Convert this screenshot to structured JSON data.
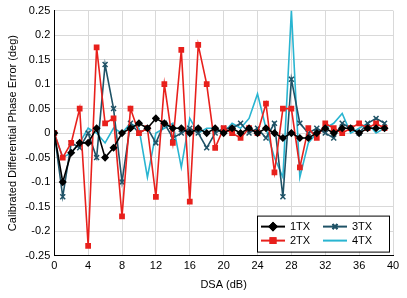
{
  "chart_data": {
    "type": "line",
    "x_label": "DSA (dB)",
    "y_label": "Calibrated Differential Phase Error (deg)",
    "x": [
      0,
      1,
      2,
      3,
      4,
      5,
      6,
      7,
      8,
      9,
      10,
      11,
      12,
      13,
      14,
      15,
      16,
      17,
      18,
      19,
      20,
      21,
      22,
      23,
      24,
      25,
      26,
      27,
      28,
      29,
      30,
      31,
      32,
      33,
      34,
      35,
      36,
      37,
      38,
      39
    ],
    "series": [
      {
        "name": "1TX",
        "color": "#000000",
        "marker": "diamond",
        "values": [
          0,
          -0.1,
          -0.04,
          -0.02,
          -0.02,
          0.01,
          -0.05,
          -0.03,
          0,
          0.01,
          0.02,
          0.01,
          0.03,
          0.02,
          0.01,
          0.01,
          0,
          0.01,
          0,
          0.01,
          0,
          0.01,
          0,
          0.01,
          0,
          0.01,
          0,
          -0.01,
          0,
          -0.01,
          -0.01,
          0,
          0.01,
          0,
          0.01,
          0.01,
          0,
          0.01,
          0.01,
          0.01
        ]
      },
      {
        "name": "2TX",
        "color": "#e8201c",
        "marker": "square",
        "values": [
          0,
          -0.05,
          -0.02,
          0.05,
          -0.23,
          0.175,
          0.02,
          0.03,
          -0.17,
          0.05,
          0,
          0.01,
          -0.13,
          0.1,
          -0.02,
          0.17,
          -0.14,
          0.18,
          0.1,
          -0.03,
          0.01,
          0,
          -0.01,
          0.01,
          0,
          0.06,
          -0.08,
          0.05,
          0.05,
          -0.07,
          0.01,
          -0.01,
          0.02,
          0.01,
          0,
          0.01,
          0.02,
          0.01,
          0.02,
          0.01
        ]
      },
      {
        "name": "3TX",
        "color": "#1f5266",
        "marker": "cross",
        "values": [
          0,
          -0.13,
          -0.02,
          -0.03,
          0,
          -0.05,
          0.14,
          0.05,
          -0.1,
          0.02,
          0,
          0.01,
          -0.02,
          0.02,
          -0.01,
          0,
          0.01,
          0,
          -0.03,
          0,
          0.01,
          0.01,
          0.02,
          0,
          0.01,
          -0.01,
          0.02,
          -0.13,
          0.11,
          0.02,
          0,
          0.01,
          0,
          -0.01,
          0.02,
          0.01,
          0,
          0.02,
          0.03,
          0.02
        ]
      },
      {
        "name": "4TX",
        "color": "#29b5d1",
        "marker": "none",
        "values": [
          0,
          -0.05,
          -0.04,
          -0.02,
          0.01,
          0,
          -0.02,
          0.01,
          0,
          0.02,
          0.01,
          -0.09,
          0,
          0.01,
          0.02,
          -0.07,
          0.03,
          0,
          0.01,
          0.01,
          0,
          0.02,
          0.01,
          0.03,
          0.08,
          0.01,
          -0.05,
          -0.09,
          0.25,
          -0.09,
          -0.02,
          0,
          0.01,
          0.02,
          0.04,
          0,
          0.01,
          0.02,
          0,
          0.01
        ]
      }
    ],
    "xlim": [
      0,
      40
    ],
    "xticks": [
      0,
      4,
      8,
      12,
      16,
      20,
      24,
      28,
      32,
      36,
      40
    ],
    "ylim": [
      -0.25,
      0.25
    ],
    "yticks": [
      -0.25,
      -0.2,
      -0.15,
      -0.1,
      -0.05,
      0,
      0.05,
      0.1,
      0.15,
      0.2,
      0.25
    ],
    "grid": true,
    "legend": "lower right"
  }
}
